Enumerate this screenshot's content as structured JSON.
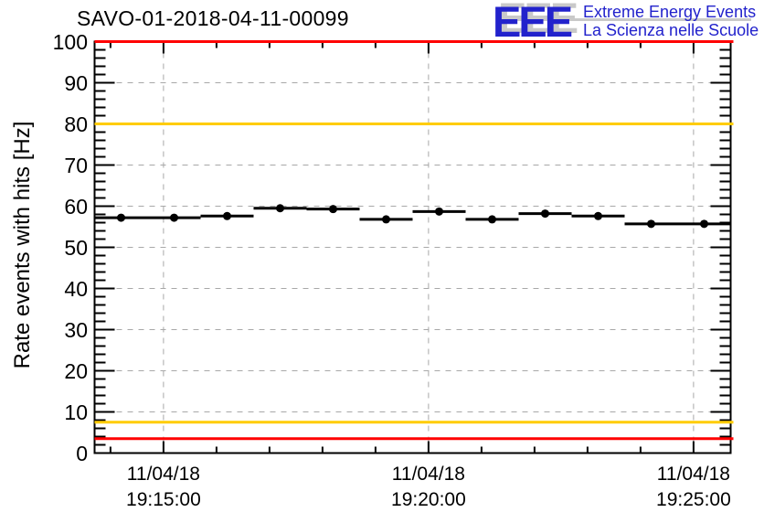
{
  "header": {
    "title": "SAVO-01-2018-04-11-00099",
    "logo": {
      "letters": "EEE",
      "line1": "Extreme Energy Events",
      "line2": "La Scienza nelle Scuole",
      "blue": "#2222cc",
      "shadow": "#c9c9c9"
    }
  },
  "chart_data": {
    "type": "scatter",
    "title": "SAVO-01-2018-04-11-00099",
    "xlabel": "",
    "ylabel": "Rate events with hits [Hz]",
    "ylim": [
      0,
      100
    ],
    "grid": "dashed gray, horizontal every 10 Hz, vertical at major time ticks",
    "legend": "none",
    "y_tick_labels": [
      "100",
      "90",
      "80",
      "70",
      "60",
      "50",
      "40",
      "30",
      "20",
      "10",
      "0"
    ],
    "y_major_step_hz": 10,
    "y_minor_step_hz": 2,
    "x_minor_step_seconds": 60,
    "x_range_seconds_from_19_15_00": [
      -78,
      642
    ],
    "x_ticks": [
      {
        "t": 0,
        "line1": "11/04/18",
        "line2": "19:15:00"
      },
      {
        "t": 300,
        "line1": "11/04/18",
        "line2": "19:20:00"
      },
      {
        "t": 600,
        "line1": "11/04/18",
        "line2": "19:25:00"
      }
    ],
    "threshold_lines": [
      {
        "name": "alarm-high",
        "value": 100,
        "color": "#ff0000"
      },
      {
        "name": "warning-high",
        "value": 80,
        "color": "#ffcc00"
      },
      {
        "name": "warning-low",
        "value": 7.5,
        "color": "#ffcc00"
      },
      {
        "name": "alarm-low",
        "value": 3.5,
        "color": "#ff0000"
      }
    ],
    "points": {
      "seconds_from_19_15_00": [
        -48,
        12,
        72,
        132,
        192,
        252,
        312,
        372,
        432,
        492,
        552,
        612
      ],
      "rate_hz": [
        57.2,
        57.2,
        57.6,
        59.5,
        59.3,
        56.8,
        58.7,
        56.8,
        58.2,
        57.6,
        55.7,
        55.7
      ],
      "x_error_seconds": 30,
      "y_error_hz": 0.9,
      "marker": "filled-circle",
      "color": "#000000"
    },
    "frame_color": "#000000",
    "grid_color": "#a8a8a8"
  }
}
